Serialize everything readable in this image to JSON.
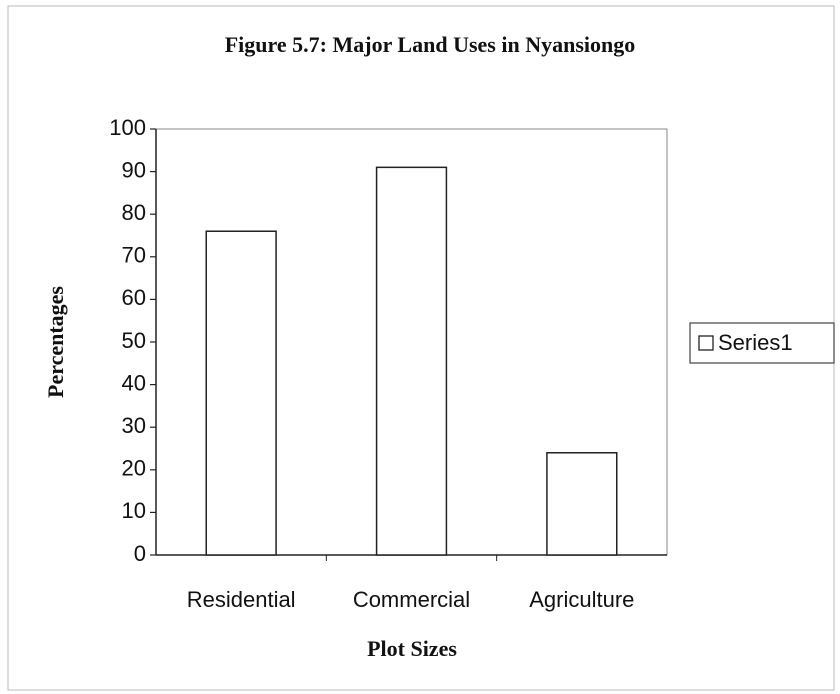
{
  "chart_data": {
    "type": "bar",
    "title": "Figure 5.7: Major Land Uses in Nyansiongo",
    "x_label": "Plot Sizes",
    "y_label": "Percentages",
    "categories": [
      "Residential",
      "Commercial",
      "Agriculture"
    ],
    "series": [
      {
        "name": "Series1",
        "color": "#ffffff",
        "values": [
          76,
          91,
          24
        ]
      }
    ],
    "ylim": [
      0,
      100
    ],
    "yticks": [
      0,
      10,
      20,
      30,
      40,
      50,
      60,
      70,
      80,
      90,
      100
    ],
    "grid": false,
    "legend": "right"
  }
}
